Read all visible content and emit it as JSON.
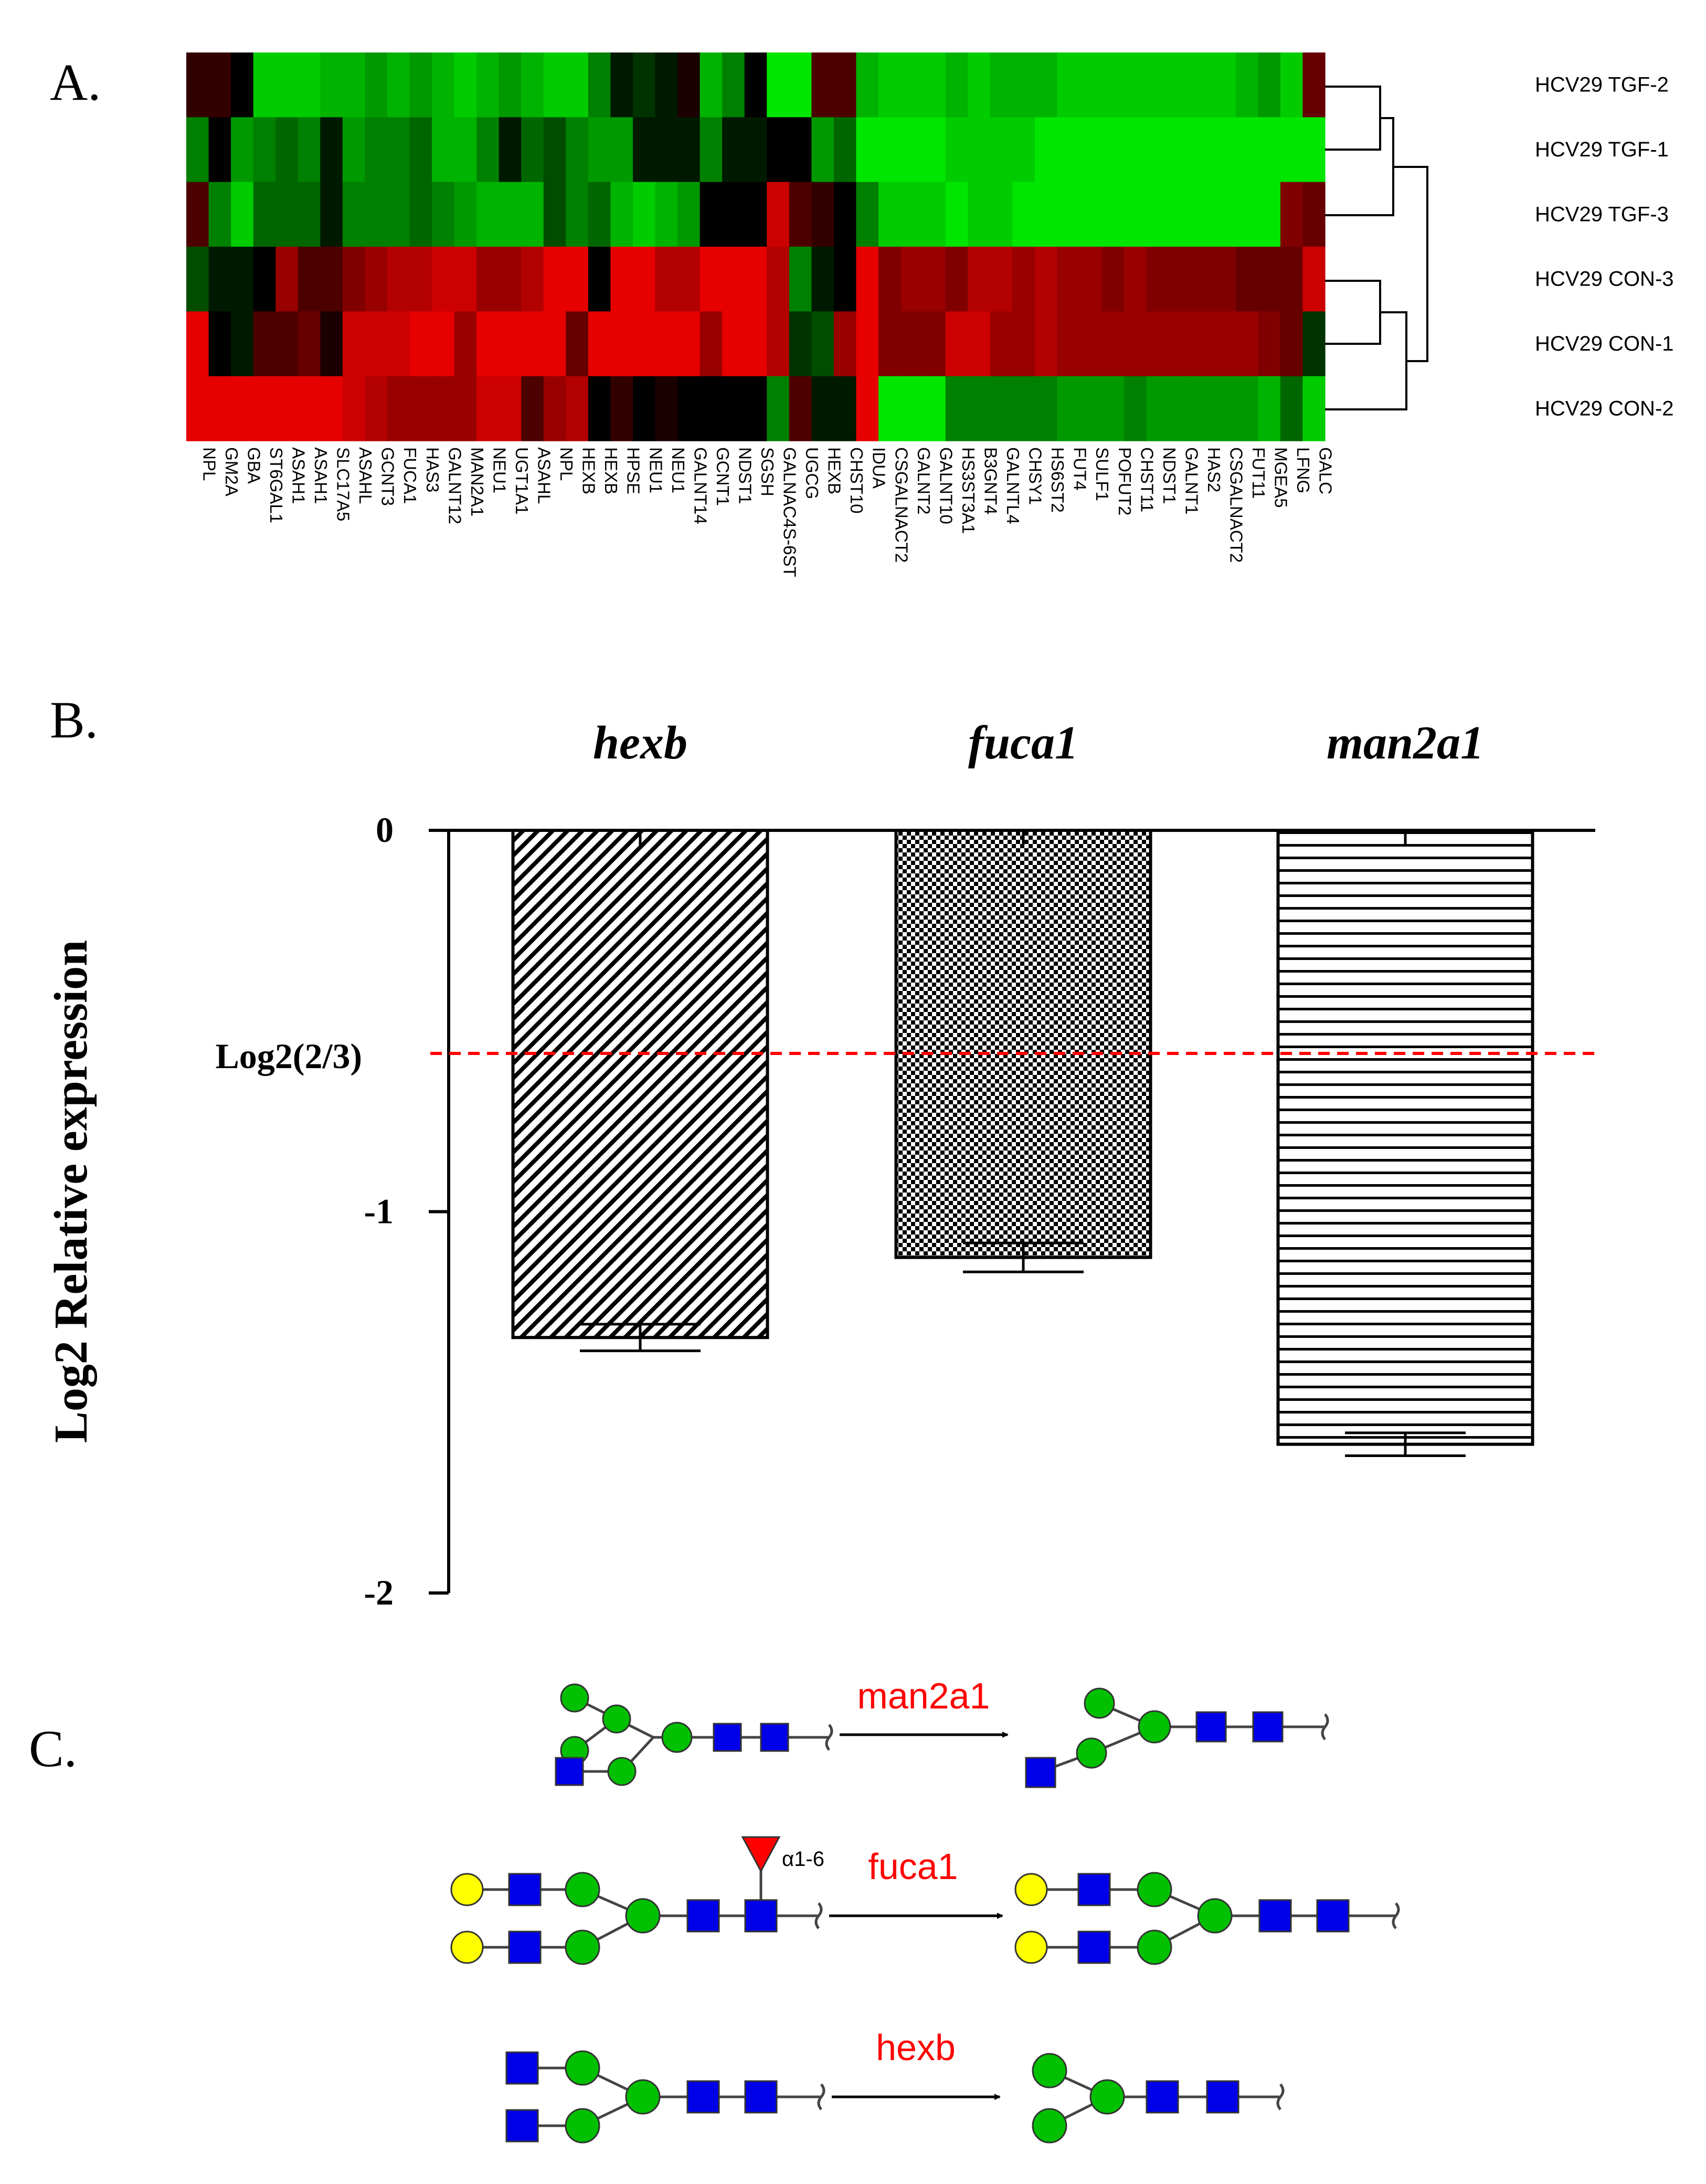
{
  "panels": {
    "A": {
      "label": "A.",
      "chart_data": {
        "type": "heatmap",
        "rows": [
          "HCV29 TGF-2",
          "HCV29 TGF-1",
          "HCV29 TGF-3",
          "HCV29 CON-3",
          "HCV29 CON-1",
          "HCV29 CON-2"
        ],
        "columns": [
          "NPL",
          "GM2A",
          "GBA",
          "ST6GAL1",
          "ASAH1",
          "ASAH1",
          "SLC17A5",
          "ASAHL",
          "GCNT3",
          "FUCA1",
          "HAS3",
          "GALNT12",
          "MAN2A1",
          "NEU1",
          "UGT1A1",
          "ASAHL",
          "NPL",
          "HEXB",
          "HEXB",
          "HPSE",
          "NEU1",
          "NEU1",
          "GALNT14",
          "GCNT1",
          "NDST1",
          "SGSH",
          "GALNAC4S-6ST",
          "UGCG",
          "HEXB",
          "CHST10",
          "IDUA",
          "CSGALNACT2",
          "GALNT2",
          "GALNT10",
          "HS3ST3A1",
          "B3GNT4",
          "GALNTL4",
          "CHSY1",
          "HS6ST2",
          "FUT4",
          "SULF1",
          "POFUT2",
          "CHST11",
          "NDST1",
          "GALNT1",
          "HAS2",
          "CSGALNACT2",
          "FUT11",
          "MGEA5",
          "LFNG",
          "GALC"
        ],
        "values": [
          [
            -0.2,
            -0.2,
            0.0,
            0.8,
            0.8,
            0.8,
            0.7,
            0.7,
            0.6,
            0.7,
            0.6,
            0.7,
            0.8,
            0.7,
            0.6,
            0.7,
            0.8,
            0.8,
            0.5,
            0.1,
            0.2,
            0.1,
            -0.1,
            0.7,
            0.5,
            0.0,
            0.9,
            0.9,
            -0.3,
            -0.3,
            0.7,
            0.8,
            0.8,
            0.8,
            0.7,
            0.8,
            0.7,
            0.7,
            0.7,
            0.8,
            0.8,
            0.8,
            0.8,
            0.8,
            0.8,
            0.8,
            0.8,
            0.7,
            0.6,
            0.8,
            -0.4
          ],
          [
            0.5,
            0.0,
            0.6,
            0.5,
            0.4,
            0.5,
            0.1,
            0.6,
            0.5,
            0.5,
            0.4,
            0.7,
            0.7,
            0.5,
            0.1,
            0.4,
            0.3,
            0.5,
            0.6,
            0.6,
            0.1,
            0.1,
            0.1,
            0.5,
            0.1,
            0.1,
            0.0,
            0.0,
            0.6,
            0.4,
            0.9,
            0.9,
            0.9,
            0.9,
            0.8,
            0.8,
            0.8,
            0.8,
            0.9,
            0.9,
            0.9,
            0.9,
            0.9,
            0.9,
            0.9,
            0.9,
            0.9,
            0.9,
            0.9,
            0.9,
            0.9
          ],
          [
            -0.3,
            0.5,
            0.8,
            0.4,
            0.4,
            0.4,
            0.1,
            0.5,
            0.5,
            0.5,
            0.4,
            0.5,
            0.6,
            0.7,
            0.7,
            0.7,
            0.3,
            0.5,
            0.4,
            0.7,
            0.8,
            0.7,
            0.6,
            0.0,
            0.0,
            0.0,
            -0.8,
            -0.3,
            -0.2,
            0.0,
            0.5,
            0.8,
            0.8,
            0.8,
            0.9,
            0.8,
            0.8,
            0.9,
            0.9,
            0.9,
            0.9,
            0.9,
            0.9,
            0.9,
            0.9,
            0.9,
            0.9,
            0.9,
            0.9,
            -0.5,
            -0.4
          ],
          [
            0.3,
            0.1,
            0.1,
            0.0,
            -0.6,
            -0.3,
            -0.3,
            -0.5,
            -0.6,
            -0.7,
            -0.7,
            -0.8,
            -0.8,
            -0.6,
            -0.6,
            -0.7,
            -0.9,
            -0.9,
            0.0,
            -0.9,
            -0.9,
            -0.7,
            -0.7,
            -0.9,
            -0.9,
            -0.9,
            -0.7,
            0.5,
            0.1,
            0.0,
            -0.9,
            -0.5,
            -0.6,
            -0.6,
            -0.5,
            -0.7,
            -0.7,
            -0.6,
            -0.7,
            -0.6,
            -0.6,
            -0.5,
            -0.6,
            -0.5,
            -0.5,
            -0.5,
            -0.5,
            -0.4,
            -0.4,
            -0.4,
            -0.8
          ],
          [
            -0.9,
            0.0,
            0.1,
            -0.3,
            -0.3,
            -0.4,
            -0.1,
            -0.8,
            -0.8,
            -0.8,
            -0.9,
            -0.9,
            -0.6,
            -0.9,
            -0.9,
            -0.9,
            -0.9,
            -0.4,
            -0.9,
            -0.9,
            -0.9,
            -0.9,
            -0.9,
            -0.6,
            -0.9,
            -0.9,
            -0.7,
            0.2,
            0.3,
            -0.6,
            -0.9,
            -0.5,
            -0.5,
            -0.5,
            -0.8,
            -0.8,
            -0.6,
            -0.6,
            -0.7,
            -0.6,
            -0.6,
            -0.6,
            -0.6,
            -0.6,
            -0.6,
            -0.6,
            -0.6,
            -0.6,
            -0.5,
            -0.4,
            0.2
          ],
          [
            -0.9,
            -0.9,
            -0.9,
            -0.9,
            -0.9,
            -0.9,
            -0.9,
            -0.8,
            -0.7,
            -0.6,
            -0.6,
            -0.6,
            -0.6,
            -0.8,
            -0.8,
            -0.3,
            -0.6,
            -0.7,
            0.0,
            -0.2,
            0.0,
            -0.1,
            0.0,
            0.0,
            0.0,
            0.0,
            0.5,
            -0.3,
            0.1,
            0.1,
            -0.9,
            0.9,
            0.9,
            0.9,
            0.5,
            0.5,
            0.5,
            0.5,
            0.5,
            0.6,
            0.6,
            0.6,
            0.5,
            0.6,
            0.6,
            0.6,
            0.6,
            0.6,
            0.7,
            0.4,
            0.8
          ]
        ],
        "color_scale": {
          "negative": "#ff0000",
          "zero": "#000000",
          "positive": "#00ff00"
        }
      }
    },
    "B": {
      "label": "B.",
      "chart_data": {
        "type": "bar",
        "categories": [
          "hexb",
          "fuca1",
          "man2a1"
        ],
        "values": [
          -1.33,
          -1.12,
          -1.61
        ],
        "errors": [
          0.035,
          0.038,
          0.03
        ],
        "patterns": [
          "diagonal",
          "checker",
          "horizontal"
        ],
        "ylabel": "Log2 Relative expression",
        "ylim": [
          -2,
          0
        ],
        "yticks": [
          "0",
          "-1",
          "-2"
        ],
        "reference_line": {
          "value": -0.585,
          "label": "Log2(2/3)",
          "color": "#ff0000"
        }
      }
    },
    "C": {
      "label": "C.",
      "reactions": [
        {
          "enzyme": "man2a1"
        },
        {
          "enzyme": "fuca1",
          "linkage": "α1-6"
        },
        {
          "enzyme": "hexb"
        }
      ]
    }
  },
  "colors": {
    "mannose": "#00c000",
    "glcnac": "#0000e8",
    "galactose": "#ffff00",
    "fucose": "#ff0000",
    "enzyme_text": "#ff0000"
  }
}
